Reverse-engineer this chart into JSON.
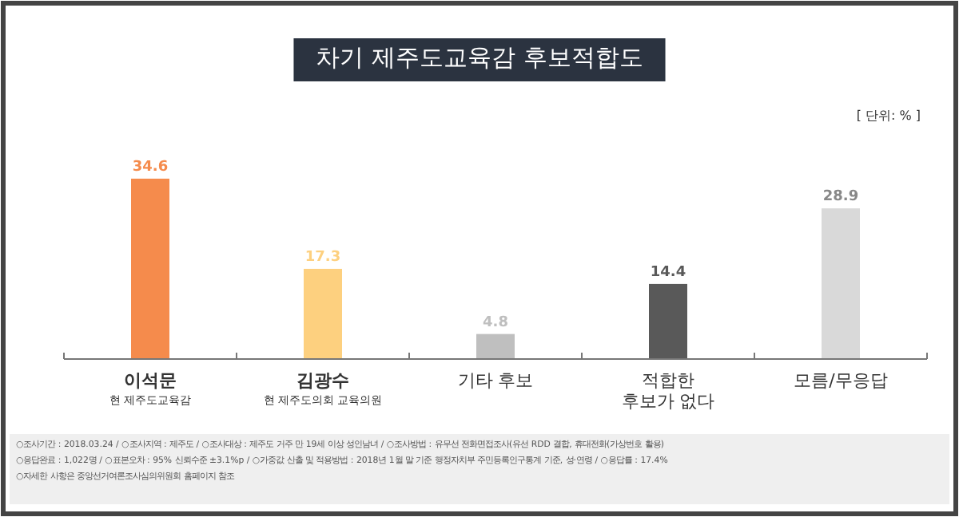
{
  "chart_data": {
    "type": "bar",
    "title": "차기 제주도교육감 후보적합도",
    "categories": [
      "이석문\n현 제주도교육감",
      "김광수\n현 제주도의회 교육의원",
      "기타 후보",
      "적합한\n후보가 없다",
      "모름/무응답"
    ],
    "values": [
      34.6,
      17.3,
      4.8,
      14.4,
      28.9
    ],
    "colors": [
      "#f58b4c",
      "#fdd07f",
      "#bfbfbf",
      "#595959",
      "#d9d9d9"
    ],
    "data_labels": true,
    "annotations": [
      "[ 단위: % ]",
      "○조사기간 : 2018.03.24 / ○조사지역 : 제주도 / ○조사대상 : 제주도 거주 만 19세 이상 성인남녀 / ○조사방법 : 유무선 전화면접조사(유선 RDD 결합, 휴대전화(가상번호 활용)",
      "○응답완료 : 1,022명 / ○표본오차 : 95% 신뢰수준 ±3.1%p / ○가중값 산출 및 적용방법 : 2018년 1월 말 기준 행정자치부 주민등록인구통계 기준, 성·연령 / ○응답률 : 17.4%",
      "○자세한 사항은 중앙선거여론조사심의위원회 홈페이지 참조"
    ]
  }
}
